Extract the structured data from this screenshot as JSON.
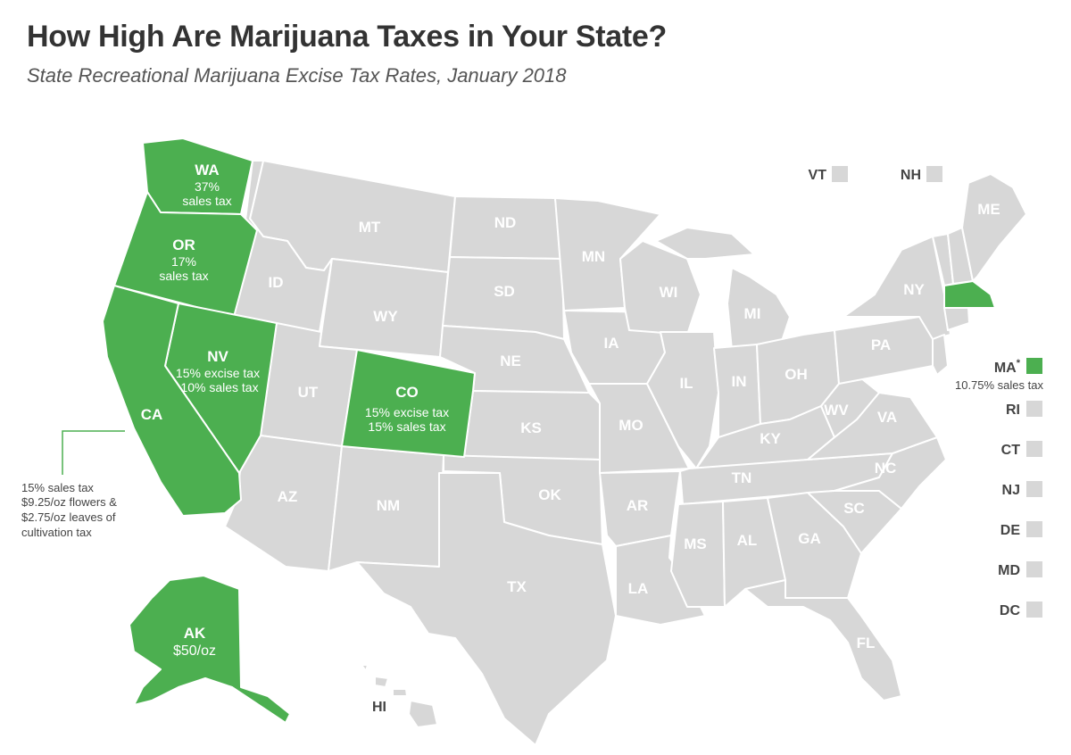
{
  "title": "How High Are Marijuana Taxes in Your State?",
  "subtitle": "State Recreational Marijuana Excise Tax Rates, January 2018",
  "colors": {
    "taxed": "#4caf50",
    "untaxed": "#d7d7d7",
    "border": "#ffffff"
  },
  "states": {
    "WA": {
      "label": "WA",
      "line1": "37%",
      "line2": "sales tax",
      "taxed": true
    },
    "OR": {
      "label": "OR",
      "line1": "17%",
      "line2": "sales tax",
      "taxed": true
    },
    "CA": {
      "label": "CA",
      "taxed": true
    },
    "NV": {
      "label": "NV",
      "line1": "15% excise tax",
      "line2": "10% sales tax",
      "taxed": true
    },
    "CO": {
      "label": "CO",
      "line1": "15% excise tax",
      "line2": "15% sales tax",
      "taxed": true
    },
    "AK": {
      "label": "AK",
      "line1": "$50/oz",
      "taxed": true
    },
    "MA": {
      "label": "MA",
      "mark": "*",
      "line1": "10.75% sales tax",
      "taxed": true
    },
    "ID": {
      "label": "ID"
    },
    "MT": {
      "label": "MT"
    },
    "WY": {
      "label": "WY"
    },
    "UT": {
      "label": "UT"
    },
    "AZ": {
      "label": "AZ"
    },
    "NM": {
      "label": "NM"
    },
    "ND": {
      "label": "ND"
    },
    "SD": {
      "label": "SD"
    },
    "NE": {
      "label": "NE"
    },
    "KS": {
      "label": "KS"
    },
    "OK": {
      "label": "OK"
    },
    "TX": {
      "label": "TX"
    },
    "MN": {
      "label": "MN"
    },
    "IA": {
      "label": "IA"
    },
    "MO": {
      "label": "MO"
    },
    "AR": {
      "label": "AR"
    },
    "LA": {
      "label": "LA"
    },
    "WI": {
      "label": "WI"
    },
    "IL": {
      "label": "IL"
    },
    "MS": {
      "label": "MS"
    },
    "MI": {
      "label": "MI"
    },
    "IN": {
      "label": "IN"
    },
    "KY": {
      "label": "KY"
    },
    "TN": {
      "label": "TN"
    },
    "AL": {
      "label": "AL"
    },
    "OH": {
      "label": "OH"
    },
    "WV": {
      "label": "WV"
    },
    "GA": {
      "label": "GA"
    },
    "FL": {
      "label": "FL"
    },
    "PA": {
      "label": "PA"
    },
    "VA": {
      "label": "VA"
    },
    "NC": {
      "label": "NC"
    },
    "SC": {
      "label": "SC"
    },
    "NY": {
      "label": "NY"
    },
    "ME": {
      "label": "ME"
    },
    "HI": {
      "label": "HI"
    }
  },
  "ca_note": [
    "15% sales tax",
    "$9.25/oz flowers &",
    "$2.75/oz leaves of",
    "cultivation tax"
  ],
  "small_states": {
    "VT": "VT",
    "NH": "NH",
    "RI": "RI",
    "CT": "CT",
    "NJ": "NJ",
    "DE": "DE",
    "MD": "MD",
    "DC": "DC"
  }
}
